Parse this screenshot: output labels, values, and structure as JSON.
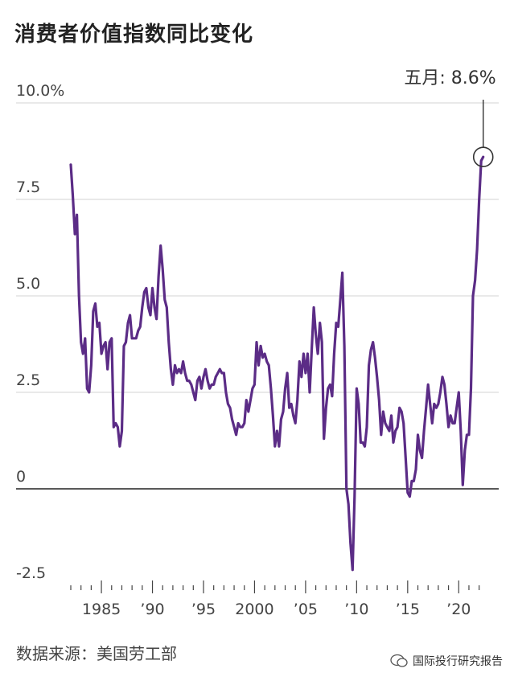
{
  "title": "消费者价值指数同比变化",
  "annotation": "五月: 8.6%",
  "source": "数据来源：美国劳工部",
  "watermark": "国际投行研究报告",
  "colors": {
    "line": "#5b2c86",
    "grid": "#dcdcdc",
    "zero": "#222222"
  },
  "chart_data": {
    "type": "line",
    "title": "消费者价值指数同比变化",
    "ylim": [
      -2.5,
      10
    ],
    "y_ticks": [
      {
        "value": 10,
        "label": "10.0%"
      },
      {
        "value": 7.5,
        "label": "7.5"
      },
      {
        "value": 5,
        "label": "5.0"
      },
      {
        "value": 2.5,
        "label": "2.5"
      },
      {
        "value": 0,
        "label": "0"
      },
      {
        "value": -2.5,
        "label": "-2.5"
      }
    ],
    "x_ticks": [
      {
        "value": 1985,
        "label": "1985"
      },
      {
        "value": 1990,
        "label": "’90"
      },
      {
        "value": 1995,
        "label": "’95"
      },
      {
        "value": 2000,
        "label": "2000"
      },
      {
        "value": 2005,
        "label": "’05"
      },
      {
        "value": 2010,
        "label": "’10"
      },
      {
        "value": 2015,
        "label": "’15"
      },
      {
        "value": 2020,
        "label": "’20"
      }
    ],
    "xlim": [
      1982.0,
      2022.5
    ],
    "grid": true,
    "series": [
      {
        "values": [
          [
            1982.0,
            8.4
          ],
          [
            1982.2,
            7.6
          ],
          [
            1982.4,
            6.6
          ],
          [
            1982.6,
            7.1
          ],
          [
            1982.8,
            5.0
          ],
          [
            1983.0,
            3.8
          ],
          [
            1983.2,
            3.5
          ],
          [
            1983.4,
            3.9
          ],
          [
            1983.6,
            2.6
          ],
          [
            1983.8,
            2.5
          ],
          [
            1984.0,
            3.2
          ],
          [
            1984.2,
            4.6
          ],
          [
            1984.4,
            4.8
          ],
          [
            1984.6,
            4.2
          ],
          [
            1984.8,
            4.3
          ],
          [
            1985.0,
            3.5
          ],
          [
            1985.2,
            3.7
          ],
          [
            1985.4,
            3.8
          ],
          [
            1985.6,
            3.1
          ],
          [
            1985.8,
            3.8
          ],
          [
            1986.0,
            3.9
          ],
          [
            1986.2,
            1.6
          ],
          [
            1986.4,
            1.7
          ],
          [
            1986.6,
            1.6
          ],
          [
            1986.8,
            1.1
          ],
          [
            1987.0,
            1.5
          ],
          [
            1987.2,
            3.7
          ],
          [
            1987.4,
            3.8
          ],
          [
            1987.6,
            4.3
          ],
          [
            1987.8,
            4.5
          ],
          [
            1988.0,
            3.9
          ],
          [
            1988.2,
            3.9
          ],
          [
            1988.4,
            3.9
          ],
          [
            1988.6,
            4.1
          ],
          [
            1988.8,
            4.2
          ],
          [
            1989.0,
            4.7
          ],
          [
            1989.2,
            5.1
          ],
          [
            1989.4,
            5.2
          ],
          [
            1989.6,
            4.7
          ],
          [
            1989.8,
            4.5
          ],
          [
            1990.0,
            5.2
          ],
          [
            1990.2,
            4.7
          ],
          [
            1990.4,
            4.4
          ],
          [
            1990.6,
            5.5
          ],
          [
            1990.8,
            6.3
          ],
          [
            1991.0,
            5.7
          ],
          [
            1991.2,
            4.9
          ],
          [
            1991.4,
            4.7
          ],
          [
            1991.6,
            3.8
          ],
          [
            1991.8,
            3.1
          ],
          [
            1992.0,
            2.7
          ],
          [
            1992.2,
            3.2
          ],
          [
            1992.4,
            3.0
          ],
          [
            1992.6,
            3.1
          ],
          [
            1992.8,
            3.0
          ],
          [
            1993.0,
            3.3
          ],
          [
            1993.2,
            3.0
          ],
          [
            1993.4,
            2.8
          ],
          [
            1993.6,
            2.8
          ],
          [
            1993.8,
            2.7
          ],
          [
            1994.0,
            2.5
          ],
          [
            1994.2,
            2.3
          ],
          [
            1994.4,
            2.8
          ],
          [
            1994.6,
            2.9
          ],
          [
            1994.8,
            2.6
          ],
          [
            1995.0,
            2.9
          ],
          [
            1995.2,
            3.1
          ],
          [
            1995.4,
            2.8
          ],
          [
            1995.6,
            2.6
          ],
          [
            1995.8,
            2.7
          ],
          [
            1996.0,
            2.7
          ],
          [
            1996.2,
            2.9
          ],
          [
            1996.4,
            3.0
          ],
          [
            1996.6,
            3.1
          ],
          [
            1996.8,
            3.0
          ],
          [
            1997.0,
            3.0
          ],
          [
            1997.2,
            2.5
          ],
          [
            1997.4,
            2.2
          ],
          [
            1997.6,
            2.1
          ],
          [
            1997.8,
            1.8
          ],
          [
            1998.0,
            1.6
          ],
          [
            1998.2,
            1.4
          ],
          [
            1998.4,
            1.7
          ],
          [
            1998.6,
            1.6
          ],
          [
            1998.8,
            1.6
          ],
          [
            1999.0,
            1.7
          ],
          [
            1999.2,
            2.3
          ],
          [
            1999.4,
            2.0
          ],
          [
            1999.6,
            2.3
          ],
          [
            1999.8,
            2.6
          ],
          [
            2000.0,
            2.7
          ],
          [
            2000.2,
            3.8
          ],
          [
            2000.4,
            3.2
          ],
          [
            2000.6,
            3.7
          ],
          [
            2000.8,
            3.4
          ],
          [
            2001.0,
            3.5
          ],
          [
            2001.2,
            3.3
          ],
          [
            2001.4,
            3.2
          ],
          [
            2001.6,
            2.6
          ],
          [
            2001.8,
            1.9
          ],
          [
            2002.0,
            1.1
          ],
          [
            2002.2,
            1.5
          ],
          [
            2002.4,
            1.1
          ],
          [
            2002.6,
            1.8
          ],
          [
            2002.8,
            2.0
          ],
          [
            2003.0,
            2.6
          ],
          [
            2003.2,
            3.0
          ],
          [
            2003.4,
            2.1
          ],
          [
            2003.6,
            2.2
          ],
          [
            2003.8,
            1.9
          ],
          [
            2004.0,
            1.7
          ],
          [
            2004.2,
            2.3
          ],
          [
            2004.4,
            3.3
          ],
          [
            2004.6,
            2.9
          ],
          [
            2004.8,
            3.5
          ],
          [
            2005.0,
            3.0
          ],
          [
            2005.2,
            3.5
          ],
          [
            2005.4,
            2.5
          ],
          [
            2005.6,
            3.6
          ],
          [
            2005.8,
            4.7
          ],
          [
            2006.0,
            4.0
          ],
          [
            2006.2,
            3.5
          ],
          [
            2006.4,
            4.3
          ],
          [
            2006.6,
            3.8
          ],
          [
            2006.8,
            1.3
          ],
          [
            2007.0,
            2.1
          ],
          [
            2007.2,
            2.6
          ],
          [
            2007.4,
            2.7
          ],
          [
            2007.6,
            2.4
          ],
          [
            2007.8,
            3.5
          ],
          [
            2008.0,
            4.3
          ],
          [
            2008.2,
            4.2
          ],
          [
            2008.4,
            4.9
          ],
          [
            2008.6,
            5.6
          ],
          [
            2008.8,
            3.7
          ],
          [
            2009.0,
            0.0
          ],
          [
            2009.2,
            -0.4
          ],
          [
            2009.4,
            -1.4
          ],
          [
            2009.6,
            -2.1
          ],
          [
            2009.8,
            -0.2
          ],
          [
            2010.0,
            2.6
          ],
          [
            2010.2,
            2.2
          ],
          [
            2010.4,
            1.2
          ],
          [
            2010.6,
            1.2
          ],
          [
            2010.8,
            1.1
          ],
          [
            2011.0,
            1.6
          ],
          [
            2011.2,
            3.2
          ],
          [
            2011.4,
            3.6
          ],
          [
            2011.6,
            3.8
          ],
          [
            2011.8,
            3.4
          ],
          [
            2012.0,
            2.9
          ],
          [
            2012.2,
            2.3
          ],
          [
            2012.4,
            1.4
          ],
          [
            2012.6,
            2.0
          ],
          [
            2012.8,
            1.7
          ],
          [
            2013.0,
            1.6
          ],
          [
            2013.2,
            1.5
          ],
          [
            2013.4,
            1.9
          ],
          [
            2013.6,
            1.2
          ],
          [
            2013.8,
            1.5
          ],
          [
            2014.0,
            1.6
          ],
          [
            2014.2,
            2.1
          ],
          [
            2014.4,
            2.0
          ],
          [
            2014.6,
            1.7
          ],
          [
            2014.8,
            0.8
          ],
          [
            2015.0,
            -0.1
          ],
          [
            2015.2,
            -0.2
          ],
          [
            2015.4,
            0.2
          ],
          [
            2015.6,
            0.2
          ],
          [
            2015.8,
            0.5
          ],
          [
            2016.0,
            1.4
          ],
          [
            2016.2,
            1.0
          ],
          [
            2016.4,
            0.8
          ],
          [
            2016.6,
            1.5
          ],
          [
            2016.8,
            2.1
          ],
          [
            2017.0,
            2.7
          ],
          [
            2017.2,
            2.2
          ],
          [
            2017.4,
            1.7
          ],
          [
            2017.6,
            2.2
          ],
          [
            2017.8,
            2.1
          ],
          [
            2018.0,
            2.2
          ],
          [
            2018.2,
            2.5
          ],
          [
            2018.4,
            2.9
          ],
          [
            2018.6,
            2.7
          ],
          [
            2018.8,
            2.2
          ],
          [
            2019.0,
            1.6
          ],
          [
            2019.2,
            1.9
          ],
          [
            2019.4,
            1.7
          ],
          [
            2019.6,
            1.7
          ],
          [
            2019.8,
            2.1
          ],
          [
            2020.0,
            2.5
          ],
          [
            2020.2,
            1.5
          ],
          [
            2020.4,
            0.1
          ],
          [
            2020.6,
            1.0
          ],
          [
            2020.8,
            1.4
          ],
          [
            2021.0,
            1.4
          ],
          [
            2021.2,
            2.6
          ],
          [
            2021.4,
            5.0
          ],
          [
            2021.6,
            5.4
          ],
          [
            2021.8,
            6.2
          ],
          [
            2022.0,
            7.5
          ],
          [
            2022.2,
            8.5
          ],
          [
            2022.4,
            8.6
          ]
        ]
      }
    ],
    "annotations": [
      {
        "x": 2022.4,
        "y": 8.6,
        "text": "五月: 8.6%"
      }
    ]
  }
}
